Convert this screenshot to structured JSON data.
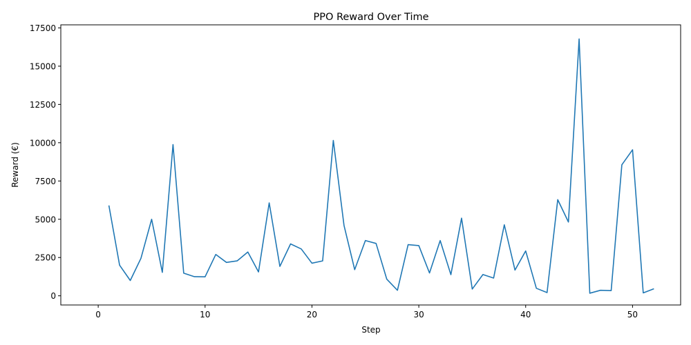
{
  "chart_data": {
    "type": "line",
    "title": "PPO Reward Over Time",
    "xlabel": "Step",
    "ylabel": "Reward (€)",
    "xlim": [
      -3.5,
      54.5
    ],
    "ylim": [
      -600,
      17700
    ],
    "xticks": [
      0,
      10,
      20,
      30,
      40,
      50
    ],
    "yticks": [
      0,
      2500,
      5000,
      7500,
      10000,
      12500,
      15000,
      17500
    ],
    "grid": false,
    "line_color": "#1f77b4",
    "series": [
      {
        "x": [
          1,
          2,
          3,
          4,
          5,
          6,
          7,
          8,
          9,
          10,
          11,
          12,
          13,
          14,
          15,
          16,
          17,
          18,
          19,
          20,
          21,
          22,
          23,
          24,
          25,
          26,
          27,
          28,
          29,
          30,
          31,
          32,
          33,
          34,
          35,
          36,
          37,
          38,
          39,
          40,
          41,
          42,
          43,
          44,
          45,
          46,
          47,
          48,
          49,
          50,
          51,
          52
        ],
        "values": [
          5900,
          2000,
          1000,
          2450,
          5000,
          1530,
          9880,
          1480,
          1250,
          1240,
          2700,
          2180,
          2280,
          2860,
          1560,
          6070,
          1920,
          3390,
          3060,
          2130,
          2280,
          10150,
          4600,
          1710,
          3610,
          3420,
          1090,
          360,
          3340,
          3280,
          1490,
          3610,
          1380,
          5070,
          440,
          1390,
          1160,
          4640,
          1680,
          2930,
          490,
          210,
          6280,
          4820,
          16780,
          170,
          360,
          340,
          8560,
          9540,
          190,
          460
        ]
      }
    ]
  }
}
